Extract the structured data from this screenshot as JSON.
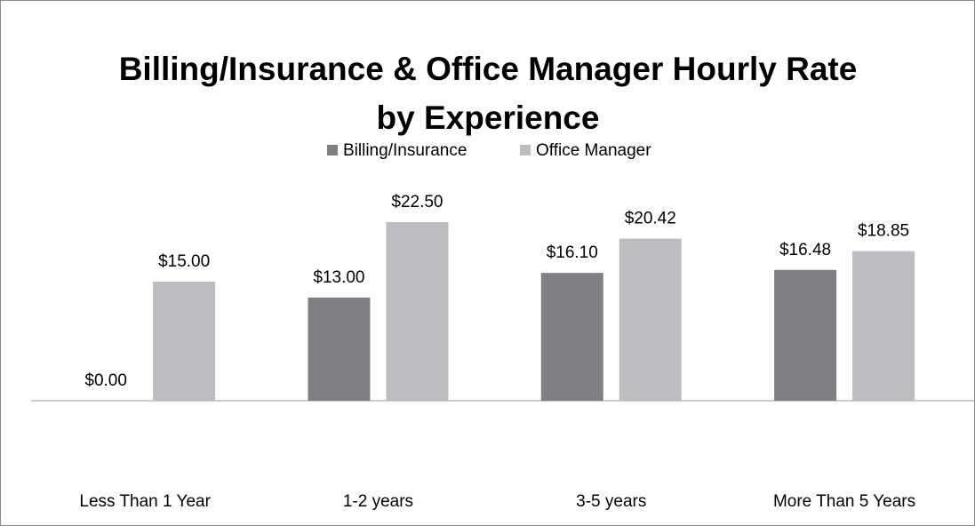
{
  "chart_data": {
    "type": "bar",
    "title": [
      "Billing/Insurance & Office Manager Hourly Rate",
      "by Experience"
    ],
    "categories": [
      "Less Than 1 Year",
      "1-2 years",
      "3-5 years",
      "More Than 5 Years"
    ],
    "series": [
      {
        "name": "Billing/Insurance",
        "color": "#7f7f84",
        "values": [
          0,
          13,
          16.1,
          16.48
        ],
        "value_labels": [
          "$0.00",
          "$13.00",
          "$16.10",
          "$16.48"
        ]
      },
      {
        "name": "Office Manager",
        "color": "#bdbdc1",
        "values": [
          15,
          22.5,
          20.42,
          18.85
        ],
        "value_labels": [
          "$15.00",
          "$22.50",
          "$20.42",
          "$18.85"
        ]
      }
    ],
    "legend": "top"
  }
}
